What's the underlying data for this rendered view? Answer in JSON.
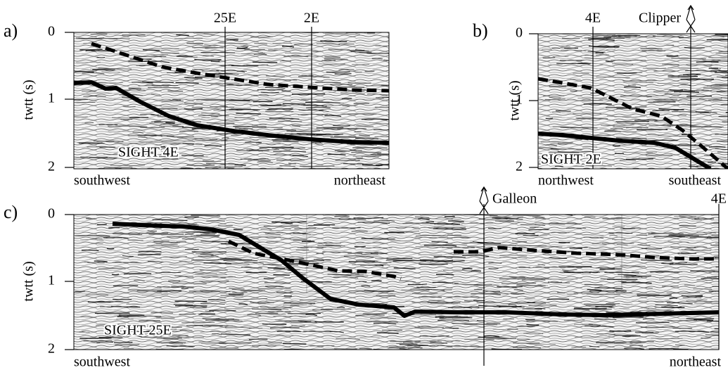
{
  "panels": [
    {
      "label": "a)",
      "y_axis_label": "twtt (s)",
      "y_ticks": [
        0,
        1,
        2
      ],
      "line_name": "SIGHT 4E",
      "left_direction": "southwest",
      "right_direction": "northeast",
      "crossings": [
        "25E",
        "2E"
      ]
    },
    {
      "label": "b)",
      "y_axis_label": "twtt (s)",
      "y_ticks": [
        0,
        1,
        2
      ],
      "line_name": "SIGHT 2E",
      "left_direction": "northwest",
      "right_direction": "southeast",
      "crossings": [
        "4E",
        "Clipper"
      ]
    },
    {
      "label": "c)",
      "y_axis_label": "twtt (s)",
      "y_ticks": [
        0,
        1,
        2
      ],
      "line_name": "SIGHT 25E",
      "left_direction": "southwest",
      "right_direction": "northeast",
      "crossings": [
        "Galleon",
        "4E"
      ]
    }
  ]
}
